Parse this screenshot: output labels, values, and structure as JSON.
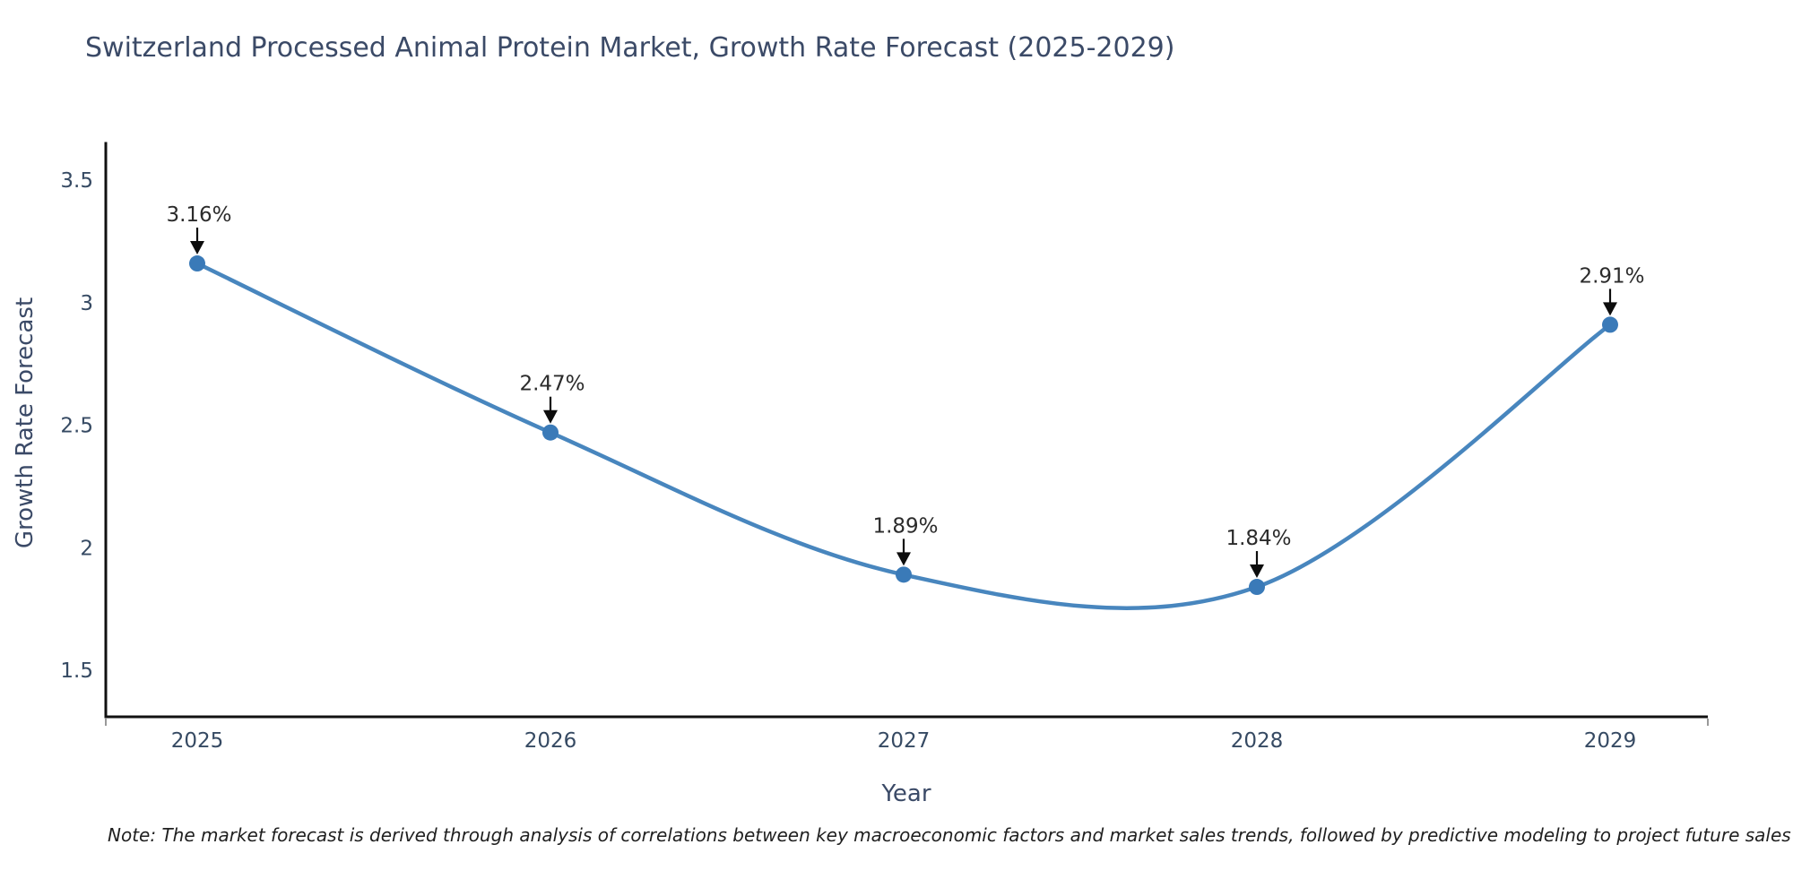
{
  "chart_data": {
    "type": "line",
    "title": "Switzerland Processed Animal Protein Market, Growth Rate Forecast (2025-2029)",
    "xlabel": "Year",
    "ylabel": "Growth Rate Forecast",
    "x": [
      2025,
      2026,
      2027,
      2028,
      2029
    ],
    "values": [
      3.16,
      2.47,
      1.89,
      1.84,
      2.91
    ],
    "point_labels": [
      "3.16%",
      "2.47%",
      "1.89%",
      "1.84%",
      "2.91%"
    ],
    "xtick_labels": [
      "2025",
      "2026",
      "2027",
      "2028",
      "2029"
    ],
    "ytick_labels": [
      "1.5",
      "2",
      "2.5",
      "3",
      "3.5"
    ],
    "yticks": [
      1.5,
      2,
      2.5,
      3,
      3.5
    ],
    "ylim": [
      1.31,
      3.65
    ],
    "grid": false,
    "legend_position": "none",
    "line_style": "spline",
    "note": "Note: The market forecast is derived through analysis of correlations between key macroeconomic factors and market sales trends, followed by predictive modeling to project future sales",
    "colors": {
      "line": "#4886be",
      "marker": "#3a7ab8",
      "axis": "#111111",
      "tick_label": "#364a63",
      "title": "#3b4a67",
      "annotation_text": "#2b2b2b",
      "arrow": "#0d0d0d",
      "note_text": "#1f1f1f",
      "background": "#ffffff"
    }
  }
}
